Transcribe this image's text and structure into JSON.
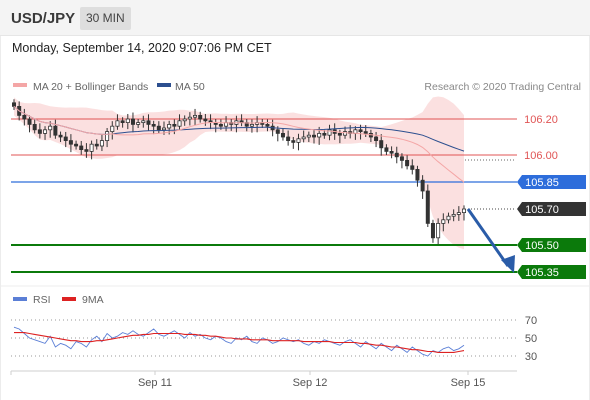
{
  "header": {
    "pair": "USD/JPY",
    "timeframe": "30 MIN",
    "datetime": "Monday, September 14, 2020 9:07:06 PM CET"
  },
  "legend": {
    "bollinger": "MA 20 + Bollinger Bands",
    "ma50": "MA 50",
    "credit": "Research © 2020 Trading Central",
    "rsi": "RSI",
    "rsi_ma": "9MA"
  },
  "colors": {
    "bollinger": "#f4a6a6",
    "ma50": "#2c4f8f",
    "resistance": "#e05555",
    "current": "#2d6ddb",
    "support": "#0b7a0b",
    "price_tag": "#333333",
    "arrow": "#2a5ca8",
    "rsi": "#5b7fd6",
    "rsi_ma": "#dd2222"
  },
  "chart_data": {
    "type": "candlestick",
    "symbol": "USD/JPY",
    "timeframe": "30 MIN",
    "x_labels": [
      "Sep 11",
      "Sep 12",
      "Sep 15"
    ],
    "price_axis": {
      "ylim": [
        105.26,
        106.31
      ]
    },
    "levels": [
      {
        "value": 106.2,
        "label": "106.20",
        "kind": "resistance"
      },
      {
        "value": 106.0,
        "label": "106.00",
        "kind": "resistance"
      },
      {
        "value": 105.85,
        "label": "105.85",
        "kind": "pivot"
      },
      {
        "value": 105.7,
        "label": "105.70",
        "kind": "last"
      },
      {
        "value": 105.5,
        "label": "105.50",
        "kind": "support"
      },
      {
        "value": 105.35,
        "label": "105.35",
        "kind": "support"
      }
    ],
    "last_price": 105.7,
    "forecast": {
      "from": 105.7,
      "to": 105.35,
      "direction": "down"
    },
    "close": [
      106.27,
      106.22,
      106.2,
      106.17,
      106.14,
      106.12,
      106.14,
      106.16,
      106.11,
      106.1,
      106.08,
      106.06,
      106.05,
      106.03,
      106.02,
      106.06,
      106.05,
      106.08,
      106.13,
      106.16,
      106.19,
      106.18,
      106.2,
      106.17,
      106.18,
      106.19,
      106.17,
      106.16,
      106.14,
      106.15,
      106.17,
      106.16,
      106.19,
      106.2,
      106.21,
      106.22,
      106.2,
      106.19,
      106.18,
      106.17,
      106.16,
      106.18,
      106.17,
      106.19,
      106.18,
      106.16,
      106.17,
      106.18,
      106.17,
      106.16,
      106.14,
      106.12,
      106.1,
      106.08,
      106.07,
      106.09,
      106.1,
      106.11,
      106.1,
      106.12,
      106.11,
      106.14,
      106.12,
      106.11,
      106.13,
      106.12,
      106.14,
      106.13,
      106.12,
      106.1,
      106.08,
      106.04,
      106.02,
      106.01,
      105.99,
      105.97,
      105.94,
      105.92,
      105.86,
      105.8,
      105.62,
      105.54,
      105.62,
      105.64,
      105.66,
      105.67,
      105.68,
      105.7
    ],
    "rsi": {
      "ylim": [
        15,
        85
      ],
      "levels": [
        70,
        50,
        30
      ],
      "rsi": [
        62,
        60,
        55,
        50,
        48,
        46,
        44,
        52,
        40,
        44,
        42,
        38,
        46,
        44,
        40,
        48,
        52,
        46,
        55,
        50,
        52,
        56,
        54,
        58,
        54,
        52,
        56,
        60,
        54,
        52,
        55,
        58,
        54,
        50,
        56,
        52,
        54,
        50,
        48,
        52,
        50,
        46,
        44,
        50,
        48,
        52,
        46,
        44,
        50,
        48,
        44,
        46,
        50,
        48,
        46,
        48,
        44,
        42,
        46,
        44,
        48,
        46,
        44,
        42,
        46,
        48,
        44,
        40,
        46,
        42,
        38,
        44,
        40,
        36,
        42,
        38,
        34,
        40,
        36,
        32,
        30,
        36,
        34,
        38,
        40,
        36,
        38,
        42
      ],
      "ma": [
        56,
        56,
        56,
        55,
        54,
        53,
        52,
        51,
        50,
        49,
        48,
        47,
        47,
        46,
        46,
        46,
        47,
        47,
        48,
        49,
        50,
        51,
        52,
        53,
        53,
        54,
        54,
        55,
        55,
        55,
        55,
        55,
        55,
        54,
        54,
        54,
        53,
        53,
        52,
        52,
        51,
        50,
        50,
        49,
        49,
        49,
        48,
        48,
        48,
        48,
        47,
        47,
        47,
        47,
        47,
        47,
        46,
        46,
        46,
        46,
        46,
        46,
        45,
        45,
        45,
        45,
        45,
        44,
        44,
        43,
        42,
        42,
        41,
        40,
        40,
        39,
        38,
        37,
        37,
        36,
        35,
        35,
        34,
        34,
        34,
        34,
        35,
        36
      ]
    }
  }
}
